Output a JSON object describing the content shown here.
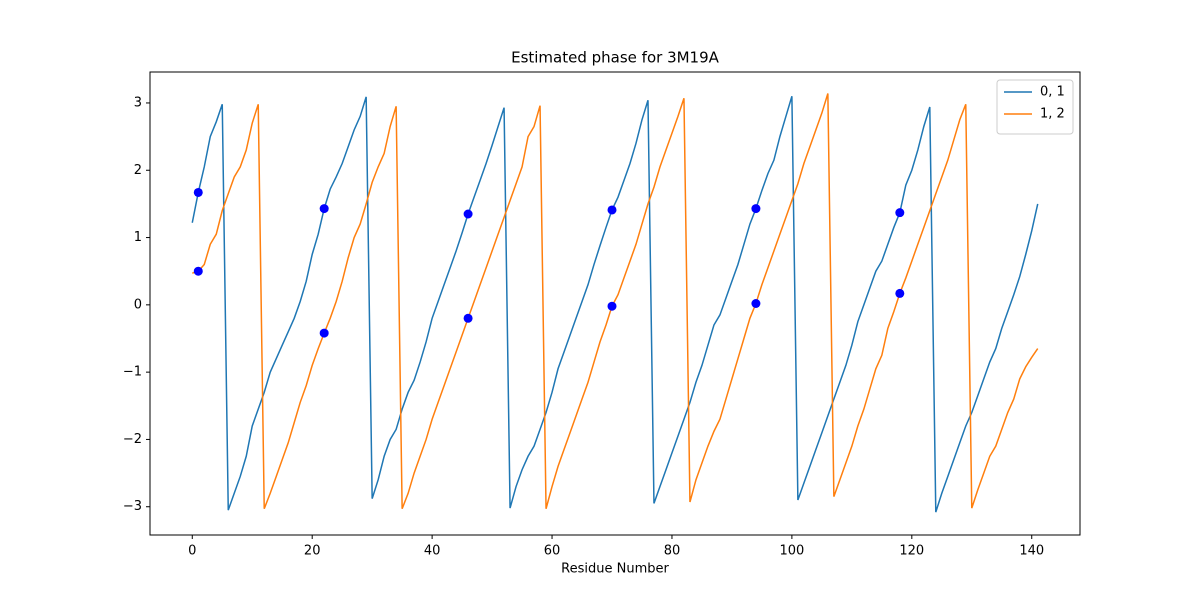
{
  "chart_data": {
    "type": "line",
    "title": "Estimated phase for 3M19A",
    "xlabel": "Residue Number",
    "x": [
      0,
      1,
      2,
      3,
      4,
      5,
      6,
      7,
      8,
      9,
      10,
      11,
      12,
      13,
      14,
      15,
      16,
      17,
      18,
      19,
      20,
      21,
      22,
      23,
      24,
      25,
      26,
      27,
      28,
      29,
      30,
      31,
      32,
      33,
      34,
      35,
      36,
      37,
      38,
      39,
      40,
      41,
      42,
      43,
      44,
      45,
      46,
      47,
      48,
      49,
      50,
      51,
      52,
      53,
      54,
      55,
      56,
      57,
      58,
      59,
      60,
      61,
      62,
      63,
      64,
      65,
      66,
      67,
      68,
      69,
      70,
      71,
      72,
      73,
      74,
      75,
      76,
      77,
      78,
      79,
      80,
      81,
      82,
      83,
      84,
      85,
      86,
      87,
      88,
      89,
      90,
      91,
      92,
      93,
      94,
      95,
      96,
      97,
      98,
      99,
      100,
      101,
      102,
      103,
      104,
      105,
      106,
      107,
      108,
      109,
      110,
      111,
      112,
      113,
      114,
      115,
      116,
      117,
      118,
      119,
      120,
      121,
      122,
      123,
      124,
      125,
      126,
      127,
      128,
      129,
      130,
      131,
      132,
      133,
      134,
      135,
      136,
      137,
      138,
      139,
      140,
      141
    ],
    "series": [
      {
        "name": "0, 1",
        "color": "#1f77b4",
        "values": [
          1.22,
          1.67,
          2.05,
          2.5,
          2.72,
          2.98,
          -3.05,
          -2.8,
          -2.55,
          -2.25,
          -1.8,
          -1.55,
          -1.3,
          -1.0,
          -0.8,
          -0.6,
          -0.4,
          -0.2,
          0.05,
          0.35,
          0.75,
          1.05,
          1.43,
          1.72,
          1.9,
          2.1,
          2.35,
          2.6,
          2.8,
          3.09,
          -2.88,
          -2.6,
          -2.25,
          -2.0,
          -1.85,
          -1.55,
          -1.3,
          -1.12,
          -0.85,
          -0.55,
          -0.2,
          0.05,
          0.3,
          0.55,
          0.8,
          1.07,
          1.35,
          1.6,
          1.85,
          2.1,
          2.37,
          2.65,
          2.93,
          -3.02,
          -2.7,
          -2.45,
          -2.25,
          -2.1,
          -1.85,
          -1.6,
          -1.3,
          -0.95,
          -0.7,
          -0.45,
          -0.2,
          0.05,
          0.3,
          0.6,
          0.88,
          1.15,
          1.41,
          1.6,
          1.85,
          2.1,
          2.4,
          2.75,
          3.04,
          -2.95,
          -2.7,
          -2.45,
          -2.2,
          -1.95,
          -1.7,
          -1.45,
          -1.15,
          -0.9,
          -0.6,
          -0.3,
          -0.15,
          0.1,
          0.35,
          0.6,
          0.9,
          1.2,
          1.43,
          1.7,
          1.95,
          2.15,
          2.5,
          2.8,
          3.1,
          -2.9,
          -2.65,
          -2.4,
          -2.15,
          -1.9,
          -1.65,
          -1.4,
          -1.15,
          -0.9,
          -0.6,
          -0.25,
          0.0,
          0.25,
          0.5,
          0.65,
          0.9,
          1.15,
          1.37,
          1.78,
          2.0,
          2.3,
          2.65,
          2.94,
          -3.08,
          -2.8,
          -2.55,
          -2.3,
          -2.05,
          -1.8,
          -1.6,
          -1.35,
          -1.1,
          -0.85,
          -0.65,
          -0.35,
          -0.1,
          0.15,
          0.42,
          0.75,
          1.1,
          1.5
        ]
      },
      {
        "name": "1, 2",
        "color": "#ff7f0e",
        "values": [
          0.47,
          0.5,
          0.6,
          0.9,
          1.05,
          1.4,
          1.65,
          1.9,
          2.05,
          2.3,
          2.7,
          2.98,
          -3.03,
          -2.8,
          -2.55,
          -2.3,
          -2.05,
          -1.75,
          -1.45,
          -1.2,
          -0.9,
          -0.65,
          -0.42,
          -0.2,
          0.05,
          0.35,
          0.7,
          1.0,
          1.2,
          1.5,
          1.82,
          2.05,
          2.25,
          2.65,
          2.95,
          -3.03,
          -2.8,
          -2.5,
          -2.25,
          -2.0,
          -1.7,
          -1.45,
          -1.2,
          -0.95,
          -0.7,
          -0.45,
          -0.2,
          0.05,
          0.3,
          0.55,
          0.8,
          1.05,
          1.3,
          1.55,
          1.8,
          2.05,
          2.5,
          2.65,
          2.96,
          -3.03,
          -2.7,
          -2.4,
          -2.15,
          -1.9,
          -1.65,
          -1.4,
          -1.15,
          -0.85,
          -0.55,
          -0.3,
          -0.02,
          0.15,
          0.4,
          0.65,
          0.9,
          1.2,
          1.5,
          1.75,
          2.05,
          2.3,
          2.55,
          2.8,
          3.07,
          -2.93,
          -2.6,
          -2.35,
          -2.1,
          -1.88,
          -1.7,
          -1.4,
          -1.1,
          -0.8,
          -0.5,
          -0.2,
          0.02,
          0.3,
          0.55,
          0.8,
          1.05,
          1.3,
          1.55,
          1.8,
          2.1,
          2.35,
          2.6,
          2.85,
          3.14,
          -2.85,
          -2.6,
          -2.35,
          -2.1,
          -1.8,
          -1.55,
          -1.25,
          -0.95,
          -0.75,
          -0.35,
          -0.1,
          0.17,
          0.4,
          0.65,
          0.9,
          1.15,
          1.4,
          1.65,
          1.9,
          2.15,
          2.45,
          2.75,
          2.98,
          -3.02,
          -2.75,
          -2.5,
          -2.25,
          -2.1,
          -1.85,
          -1.6,
          -1.4,
          -1.1,
          -0.92,
          -0.78,
          -0.65
        ]
      }
    ],
    "markers": {
      "color": "#0000ff",
      "x": [
        1,
        1,
        22,
        22,
        46,
        46,
        70,
        70,
        94,
        94,
        118,
        118
      ],
      "y": [
        1.67,
        0.5,
        1.43,
        -0.42,
        1.35,
        -0.2,
        1.41,
        -0.02,
        1.43,
        0.02,
        1.37,
        0.17
      ]
    },
    "xlim": [
      -7.05,
      148.05
    ],
    "xticks": [
      0,
      20,
      40,
      60,
      80,
      100,
      120,
      140
    ],
    "ylim": [
      -3.42,
      3.46
    ],
    "yticks": [
      {
        "value": -3,
        "label": "−3"
      },
      {
        "value": -2,
        "label": "−2"
      },
      {
        "value": -1,
        "label": "−1"
      },
      0,
      1,
      2,
      3
    ],
    "legend": "upper right",
    "grid": false
  }
}
